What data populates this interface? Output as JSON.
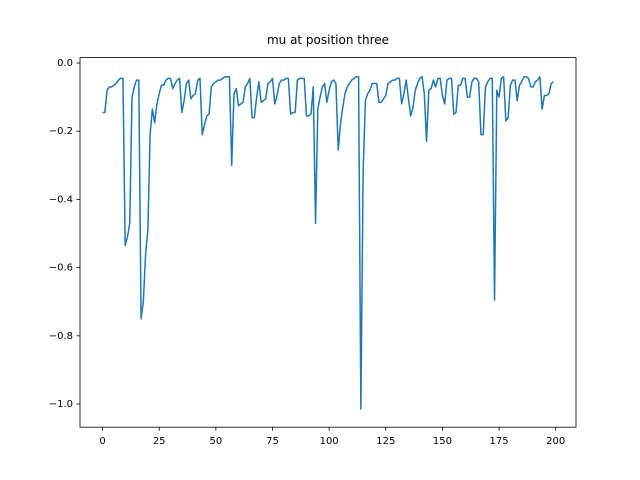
{
  "chart_data": {
    "type": "line",
    "title": "mu at position three",
    "x": [
      0,
      1,
      2,
      3,
      4,
      5,
      6,
      7,
      8,
      9,
      10,
      11,
      12,
      13,
      14,
      15,
      16,
      17,
      18,
      19,
      20,
      21,
      22,
      23,
      24,
      25,
      26,
      27,
      28,
      29,
      30,
      31,
      32,
      33,
      34,
      35,
      36,
      37,
      38,
      39,
      40,
      41,
      42,
      43,
      44,
      45,
      46,
      47,
      48,
      49,
      50,
      51,
      52,
      53,
      54,
      55,
      56,
      57,
      58,
      59,
      60,
      61,
      62,
      63,
      64,
      65,
      66,
      67,
      68,
      69,
      70,
      71,
      72,
      73,
      74,
      75,
      76,
      77,
      78,
      79,
      80,
      81,
      82,
      83,
      84,
      85,
      86,
      87,
      88,
      89,
      90,
      91,
      92,
      93,
      94,
      95,
      96,
      97,
      98,
      99,
      100,
      101,
      102,
      103,
      104,
      105,
      106,
      107,
      108,
      109,
      110,
      111,
      112,
      113,
      114,
      115,
      116,
      117,
      118,
      119,
      120,
      121,
      122,
      123,
      124,
      125,
      126,
      127,
      128,
      129,
      130,
      131,
      132,
      133,
      134,
      135,
      136,
      137,
      138,
      139,
      140,
      141,
      142,
      143,
      144,
      145,
      146,
      147,
      148,
      149,
      150,
      151,
      152,
      153,
      154,
      155,
      156,
      157,
      158,
      159,
      160,
      161,
      162,
      163,
      164,
      165,
      166,
      167,
      168,
      169,
      170,
      171,
      172,
      173,
      174,
      175,
      176,
      177,
      178,
      179,
      180,
      181,
      182,
      183,
      184,
      185,
      186,
      187,
      188,
      189,
      190,
      191,
      192,
      193,
      194,
      195,
      196,
      197,
      198,
      199
    ],
    "series": [
      {
        "color": "#1f77b4",
        "values": [
          -0.145,
          -0.145,
          -0.08,
          -0.07,
          -0.07,
          -0.065,
          -0.06,
          -0.05,
          -0.045,
          -0.045,
          -0.535,
          -0.51,
          -0.47,
          -0.1,
          -0.07,
          -0.05,
          -0.05,
          -0.75,
          -0.7,
          -0.56,
          -0.49,
          -0.21,
          -0.135,
          -0.175,
          -0.12,
          -0.09,
          -0.065,
          -0.065,
          -0.05,
          -0.045,
          -0.045,
          -0.075,
          -0.06,
          -0.05,
          -0.045,
          -0.145,
          -0.11,
          -0.06,
          -0.05,
          -0.105,
          -0.095,
          -0.09,
          -0.05,
          -0.045,
          -0.21,
          -0.18,
          -0.155,
          -0.15,
          -0.07,
          -0.06,
          -0.055,
          -0.05,
          -0.05,
          -0.045,
          -0.04,
          -0.04,
          -0.04,
          -0.3,
          -0.09,
          -0.075,
          -0.125,
          -0.12,
          -0.115,
          -0.07,
          -0.06,
          -0.045,
          -0.16,
          -0.16,
          -0.1,
          -0.055,
          -0.115,
          -0.11,
          -0.105,
          -0.06,
          -0.055,
          -0.045,
          -0.12,
          -0.095,
          -0.06,
          -0.05,
          -0.05,
          -0.045,
          -0.045,
          -0.15,
          -0.145,
          -0.145,
          -0.05,
          -0.045,
          -0.045,
          -0.045,
          -0.155,
          -0.155,
          -0.15,
          -0.07,
          -0.47,
          -0.135,
          -0.1,
          -0.07,
          -0.06,
          -0.115,
          -0.08,
          -0.055,
          -0.05,
          -0.06,
          -0.255,
          -0.18,
          -0.13,
          -0.09,
          -0.07,
          -0.06,
          -0.05,
          -0.045,
          -0.04,
          -0.04,
          -1.015,
          -0.32,
          -0.11,
          -0.09,
          -0.08,
          -0.06,
          -0.06,
          -0.06,
          -0.115,
          -0.115,
          -0.105,
          -0.095,
          -0.06,
          -0.055,
          -0.05,
          -0.05,
          -0.045,
          -0.045,
          -0.12,
          -0.09,
          -0.05,
          -0.105,
          -0.155,
          -0.13,
          -0.08,
          -0.06,
          -0.045,
          -0.04,
          -0.09,
          -0.23,
          -0.08,
          -0.075,
          -0.05,
          -0.07,
          -0.045,
          -0.045,
          -0.095,
          -0.12,
          -0.05,
          -0.045,
          -0.045,
          -0.15,
          -0.145,
          -0.065,
          -0.065,
          -0.045,
          -0.045,
          -0.1,
          -0.1,
          -0.055,
          -0.045,
          -0.045,
          -0.055,
          -0.21,
          -0.21,
          -0.07,
          -0.055,
          -0.045,
          -0.045,
          -0.695,
          -0.08,
          -0.1,
          -0.045,
          -0.04,
          -0.17,
          -0.16,
          -0.065,
          -0.05,
          -0.05,
          -0.11,
          -0.065,
          -0.055,
          -0.04,
          -0.04,
          -0.045,
          -0.07,
          -0.07,
          -0.055,
          -0.05,
          -0.04,
          -0.135,
          -0.095,
          -0.095,
          -0.09,
          -0.06,
          -0.055
        ]
      }
    ],
    "xlim": [
      -9.95,
      208.95
    ],
    "ylim": [
      -1.068,
      0.016
    ],
    "xticks": [
      0,
      25,
      50,
      75,
      100,
      125,
      150,
      175,
      200
    ],
    "yticks": [
      {
        "value": -1.0,
        "label": "−1.0"
      },
      {
        "value": -0.8,
        "label": "−0.8"
      },
      {
        "value": -0.6,
        "label": "−0.6"
      },
      {
        "value": -0.4,
        "label": "−0.4"
      },
      {
        "value": -0.2,
        "label": "−0.2"
      },
      {
        "value": 0.0,
        "label": "0.0"
      }
    ],
    "grid": false
  }
}
